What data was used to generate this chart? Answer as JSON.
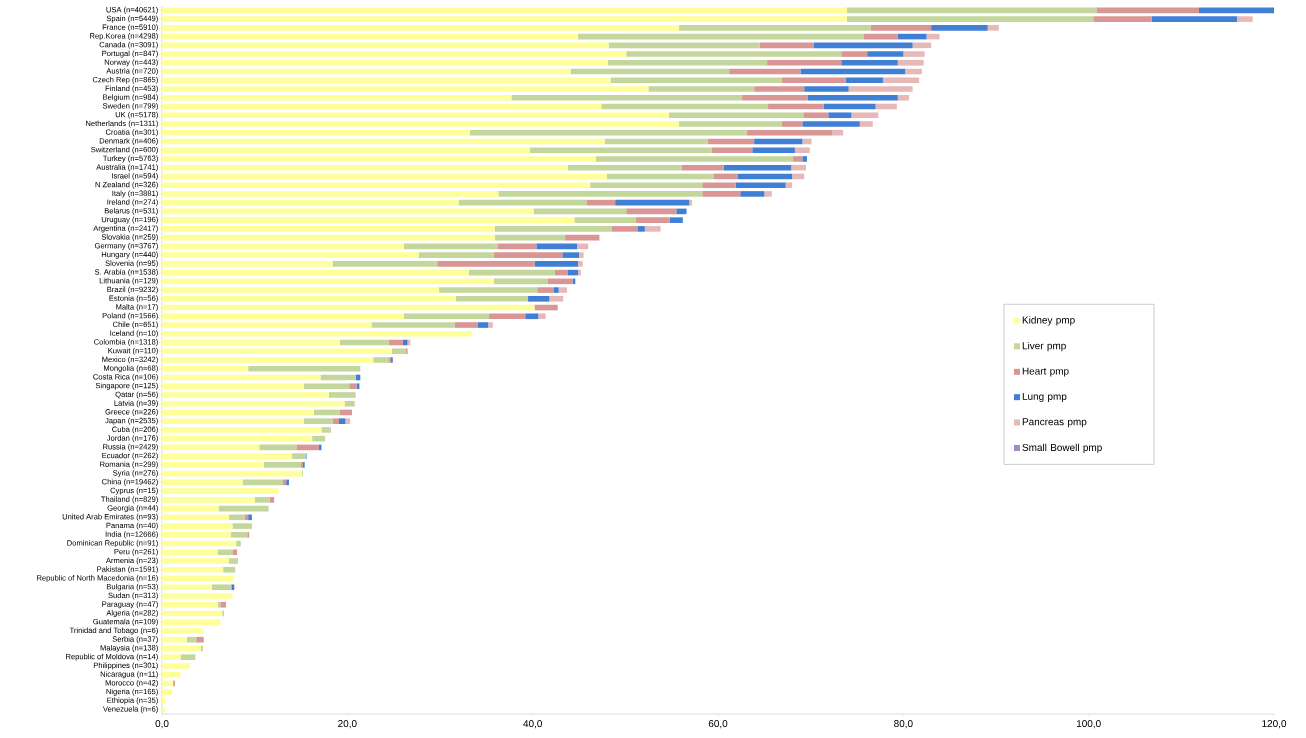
{
  "chart_data": {
    "type": "bar",
    "orientation": "horizontal",
    "stacked": true,
    "legend": "right",
    "categories": [
      "USA (n=40621)",
      "Spain (n=5449)",
      "France (n=5910)",
      "Rep.Korea (n=4298)",
      "Canada (n=3091)",
      "Portugal (n=847)",
      "Norway (n=443)",
      "Austria (n=720)",
      "Czech Rep (n=865)",
      "Finland (n=453)",
      "Belgium (n=984)",
      "Sweden (n=799)",
      "UK (n=5178)",
      "Netherlands (n=1311)",
      "Croatia (n=301)",
      "Denmark (n=406)",
      "Switzerland (n=600)",
      "Turkey (n=5763)",
      "Australia (n=1741)",
      "Israel (n=594)",
      "N Zealand (n=326)",
      "Italy (n=3881)",
      "Ireland (n=274)",
      "Belarus (n=531)",
      "Uruguay (n=196)",
      "Argentina (n=2417)",
      "Slovakia (n=259)",
      "Germany (n=3767)",
      "Hungary (n=440)",
      "Slovenia (n=95)",
      "S. Arabia (n=1538)",
      "Lithuania (n=129)",
      "Brazil (n=9232)",
      "Estonia (n=56)",
      "Malta (n=17)",
      "Poland (n=1566)",
      "Chile (n=651)",
      "Iceland (n=10)",
      "Colombia (n=1318)",
      "Kuwait (n=110)",
      "Mexico (n=3242)",
      "Mongolia (n=68)",
      "Costa Rica (n=106)",
      "Singapore (n=125)",
      "Qatar (n=56)",
      "Latvia (n=39)",
      "Greece (n=226)",
      "Japan (n=2535)",
      "Cuba (n=206)",
      "Jordan (n=176)",
      "Russia (n=2429)",
      "Ecuador (n=262)",
      "Romania (n=299)",
      "Syria (n=276)",
      "China (n=19462)",
      "Cyprus (n=15)",
      "Thailand (n=829)",
      "Georgia (n=44)",
      "United Arab Emirates (n=93)",
      "Panama (n=40)",
      "India (n=12666)",
      "Dominican Republic (n=91)",
      "Peru (n=261)",
      "Armenia (n=23)",
      "Pakistan (n=1591)",
      "Republic of North Macedonia (n=16)",
      "Bulgaria (n=53)",
      "Sudan (n=313)",
      "Paraguay (n=47)",
      "Algeria (n=282)",
      "Guatemala (n=109)",
      "Trinidad and Tobago (n=6)",
      "Serbia (n=37)",
      "Malaysia (n=138)",
      "Republic of Moldova (n=14)",
      "Philippines (n=301)",
      "Nicaragua (n=11)",
      "Morocco (n=42)",
      "Nigeria (n=165)",
      "Ethiopia (n=35)",
      "Venezuela (n=6)"
    ],
    "xlim": [
      0,
      120
    ],
    "xticks": [
      {
        "value": 0,
        "label": "0,0"
      },
      {
        "value": 20,
        "label": "20,0"
      },
      {
        "value": 40,
        "label": "40,0"
      },
      {
        "value": 60,
        "label": "60,0"
      },
      {
        "value": 80,
        "label": "80,0"
      },
      {
        "value": 100,
        "label": "100,0"
      },
      {
        "value": 120,
        "label": "120,0"
      }
    ],
    "series": [
      {
        "name": "Kidney pmp",
        "color": "#ffff99",
        "values": [
          73.9,
          73.9,
          55.8,
          44.9,
          48.2,
          50.1,
          48.1,
          44.1,
          48.4,
          52.5,
          37.7,
          47.4,
          54.7,
          55.8,
          33.2,
          47.8,
          39.7,
          46.8,
          43.8,
          48.0,
          46.2,
          36.3,
          32.0,
          40.1,
          44.5,
          35.9,
          35.9,
          26.1,
          27.7,
          18.4,
          33.1,
          35.8,
          29.9,
          31.7,
          40.2,
          26.1,
          22.6,
          33.5,
          19.2,
          24.8,
          22.8,
          9.3,
          17.1,
          15.3,
          18.0,
          19.7,
          16.4,
          15.3,
          17.2,
          16.2,
          10.5,
          14.0,
          11.0,
          15.1,
          8.7,
          12.6,
          10.0,
          6.1,
          7.2,
          7.6,
          7.4,
          8.0,
          6.0,
          7.2,
          6.6,
          7.8,
          5.4,
          7.6,
          6.0,
          6.5,
          6.3,
          4.5,
          2.7,
          4.2,
          2.0,
          3.0,
          2.0,
          1.2,
          1.1,
          0.4,
          0.3
        ]
      },
      {
        "name": "Liver pmp",
        "color": "#c3d69b",
        "values": [
          27.0,
          26.6,
          20.7,
          30.8,
          16.3,
          23.2,
          17.2,
          17.1,
          18.5,
          11.4,
          24.9,
          18.0,
          14.5,
          11.1,
          29.9,
          11.1,
          19.6,
          21.3,
          12.3,
          11.5,
          12.1,
          22.0,
          13.8,
          10.0,
          6.6,
          12.6,
          7.6,
          10.1,
          8.1,
          11.3,
          9.3,
          5.8,
          10.6,
          7.8,
          0,
          9.2,
          9.0,
          0,
          5.3,
          1.5,
          1.7,
          12.1,
          3.8,
          4.9,
          2.9,
          1.1,
          2.8,
          3.1,
          0.9,
          1.4,
          4.0,
          1.5,
          4.0,
          0.1,
          4.3,
          0,
          1.6,
          5.4,
          1.7,
          2.1,
          1.8,
          0.5,
          1.6,
          1.0,
          1.3,
          0,
          2.0,
          0,
          0.3,
          0.2,
          0,
          0,
          1.0,
          0.2,
          1.6,
          0,
          0,
          0,
          0,
          0,
          0
        ]
      },
      {
        "name": "Heart pmp",
        "color": "#d99694",
        "values": [
          11.0,
          6.3,
          6.5,
          3.7,
          5.8,
          2.8,
          8.0,
          7.7,
          6.9,
          5.4,
          7.1,
          6.0,
          2.7,
          2.2,
          9.2,
          5.0,
          4.4,
          1.0,
          4.5,
          2.6,
          3.6,
          4.1,
          3.1,
          5.4,
          3.7,
          2.8,
          3.7,
          4.2,
          7.4,
          10.5,
          1.4,
          2.7,
          1.8,
          0,
          2.5,
          3.9,
          2.5,
          0,
          1.5,
          0.2,
          0.2,
          0,
          0,
          0.8,
          0,
          0,
          1.3,
          0.7,
          0.1,
          0,
          2.4,
          0,
          0.2,
          0,
          0.4,
          0,
          0.5,
          0,
          0.4,
          0,
          0.2,
          0,
          0.5,
          0,
          0,
          0,
          0.1,
          0,
          0.6,
          0,
          0,
          0,
          0.8,
          0,
          0,
          0,
          0,
          0.2,
          0,
          0,
          0
        ]
      },
      {
        "name": "Lung pmp",
        "color": "#3f7fd6",
        "values": [
          8.1,
          9.2,
          6.1,
          3.1,
          10.7,
          3.9,
          6.1,
          11.3,
          4.0,
          4.8,
          9.7,
          5.6,
          2.5,
          6.2,
          0,
          5.2,
          4.6,
          0.5,
          7.3,
          5.9,
          5.4,
          2.6,
          8.0,
          1.1,
          1.4,
          0.8,
          0,
          4.4,
          1.8,
          4.7,
          1.1,
          0.3,
          0.5,
          2.3,
          0,
          1.4,
          1.1,
          0,
          0.5,
          0,
          0.2,
          0,
          0.5,
          0.3,
          0,
          0,
          0,
          0.7,
          0,
          0,
          0.3,
          0.1,
          0.2,
          0,
          0.3,
          0,
          0,
          0,
          0.4,
          0,
          0,
          0,
          0,
          0,
          0,
          0,
          0.3,
          0,
          0,
          0,
          0,
          0,
          0,
          0,
          0,
          0,
          0,
          0,
          0,
          0,
          0
        ]
      },
      {
        "name": "Pancreas pmp",
        "color": "#e6b9b8",
        "values": [
          0,
          1.7,
          1.2,
          1.4,
          2.0,
          2.3,
          2.8,
          1.8,
          3.9,
          6.9,
          1.2,
          2.3,
          2.9,
          1.4,
          1.2,
          1.0,
          1.6,
          0,
          1.6,
          1.3,
          0.7,
          0.8,
          0.3,
          0,
          0,
          1.7,
          0,
          1.2,
          0.5,
          0.5,
          0.3,
          0,
          0.9,
          1.5,
          0,
          0.8,
          0.5,
          0,
          0.3,
          0,
          0,
          0,
          0,
          0,
          0,
          0,
          0,
          0.5,
          0,
          0,
          0,
          0,
          0,
          0,
          0,
          0,
          0,
          0,
          0,
          0,
          0,
          0,
          0,
          0,
          0,
          0,
          0,
          0,
          0,
          0,
          0,
          0,
          0,
          0,
          0,
          0,
          0,
          0,
          0,
          0,
          0
        ]
      },
      {
        "name": "Small Bowell pmp",
        "color": "#a58bc4",
        "values": [
          0,
          0,
          0,
          0,
          0,
          0,
          0,
          0,
          0,
          0,
          0,
          0,
          0,
          0,
          0,
          0,
          0,
          0,
          0,
          0,
          0,
          0,
          0,
          0,
          0,
          0,
          0,
          0,
          0,
          0,
          0,
          0,
          0,
          0,
          0,
          0,
          0,
          0,
          0,
          0,
          0,
          0,
          0,
          0,
          0,
          0,
          0,
          0,
          0,
          0,
          0,
          0,
          0,
          0,
          0,
          0,
          0,
          0,
          0,
          0,
          0,
          0,
          0,
          0,
          0,
          0,
          0,
          0,
          0,
          0,
          0,
          0,
          0,
          0,
          0,
          0,
          0,
          0,
          0,
          0,
          0
        ]
      }
    ]
  }
}
